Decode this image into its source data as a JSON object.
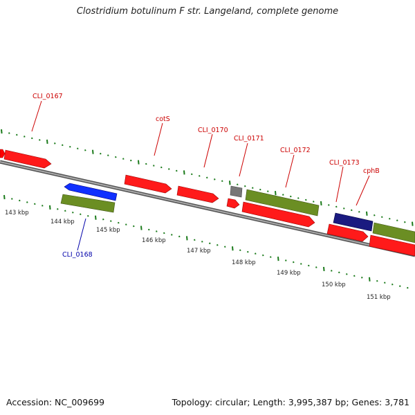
{
  "header": {
    "title": "Clostridium botulinum F str. Langeland, complete genome"
  },
  "footer": {
    "accession": "Accession: NC_009699",
    "summary": "Topology: circular; Length: 3,995,387 bp; Genes: 3,781"
  },
  "colors": {
    "forward_cds": "#ff0000",
    "reverse_cds": "#ff0000",
    "rna_olive": "#6b8e23",
    "blue_gene": "#0000ff",
    "navy_gene": "#000080",
    "gray_gene": "#777777",
    "tick_green": "#1a7a1a",
    "label_red": "#cc0000",
    "label_blue": "#0000aa",
    "backbone": "#808080"
  },
  "scale_labels": [
    "143 kbp",
    "144 kbp",
    "145 kbp",
    "146 kbp",
    "147 kbp",
    "148 kbp",
    "149 kbp",
    "150 kbp",
    "151 kbp"
  ],
  "gene_labels": [
    {
      "text": "CLI_0167",
      "color": "red"
    },
    {
      "text": "cotS",
      "color": "red"
    },
    {
      "text": "CLI_0170",
      "color": "red"
    },
    {
      "text": "CLI_0171",
      "color": "red"
    },
    {
      "text": "CLI_0172",
      "color": "red"
    },
    {
      "text": "CLI_0173",
      "color": "red"
    },
    {
      "text": "cphB",
      "color": "red"
    },
    {
      "text": "CLI_0168",
      "color": "blue"
    }
  ]
}
